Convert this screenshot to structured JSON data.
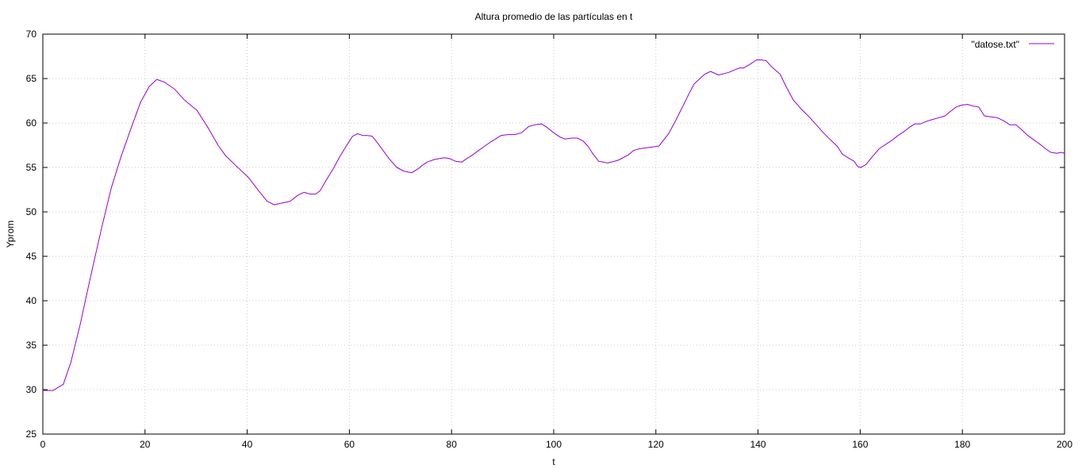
{
  "chart_data": {
    "type": "line",
    "title": "Altura promedio de las partículas en t",
    "xlabel": "t",
    "ylabel": "Yprom",
    "xlim": [
      0,
      200
    ],
    "ylim": [
      25,
      70
    ],
    "xticks": [
      0,
      20,
      40,
      60,
      80,
      100,
      120,
      140,
      160,
      180,
      200
    ],
    "yticks": [
      25,
      30,
      35,
      40,
      45,
      50,
      55,
      60,
      65,
      70
    ],
    "grid": true,
    "legend_position": "top-right",
    "series": [
      {
        "name": "\"datose.txt\"",
        "color": "#9400d3",
        "x": [
          0,
          2,
          4,
          5.5,
          7.3,
          9.3,
          11.5,
          13.4,
          15.3,
          17.2,
          19.1,
          20.8,
          22.3,
          23.8,
          25.8,
          27.7,
          30.2,
          32.4,
          34.3,
          35.8,
          37.8,
          40.2,
          42.2,
          43.9,
          45.3,
          46.9,
          48.4,
          50,
          51.1,
          52.4,
          53.4,
          54.3,
          55.4,
          56.9,
          58.1,
          59.5,
          60.6,
          61.6,
          62.6,
          63.6,
          64.5,
          65.6,
          66.6,
          67.9,
          69.3,
          70.6,
          72.2,
          73.6,
          74.2,
          75.2,
          76.7,
          78.6,
          79.6,
          80.8,
          82,
          83,
          84.1,
          85.3,
          86.5,
          87.5,
          88.6,
          89.7,
          91,
          92.4,
          93.7,
          95.1,
          96.3,
          97.6,
          98.7,
          100,
          101.3,
          102.2,
          103.5,
          104.6,
          105.7,
          106.7,
          107.6,
          108.8,
          110.6,
          112.6,
          114.6,
          115.6,
          116.8,
          118,
          119.3,
          120.6,
          122.5,
          123.9,
          125.2,
          126.4,
          127.5,
          128.8,
          129.6,
          130.7,
          132.3,
          134.3,
          135.5,
          136.4,
          137.2,
          138.4,
          139.7,
          140.6,
          141.6,
          142.7,
          144.3,
          145.5,
          146.9,
          148.4,
          150,
          151.4,
          152.8,
          154.2,
          155.5,
          156.5,
          157.6,
          158.8,
          159.5,
          160.1,
          161.1,
          162.2,
          163.7,
          165,
          166.3,
          167.4,
          168.5,
          169.6,
          170.7,
          171.8,
          173,
          174.2,
          175.4,
          176.6,
          177.4,
          178.8,
          179.8,
          181,
          182.1,
          183.2,
          184.3,
          185.6,
          186.8,
          187.9,
          189.3,
          190.5,
          191.7,
          192.8,
          194,
          195.2,
          196.3,
          197.3,
          198.5,
          199.4,
          200
        ],
        "values": [
          29.9,
          29.9,
          30.6,
          33.1,
          37.3,
          42.6,
          48.2,
          52.7,
          56.2,
          59.3,
          62.3,
          64.1,
          64.9,
          64.6,
          63.8,
          62.6,
          61.4,
          59.4,
          57.5,
          56.3,
          55.2,
          53.9,
          52.4,
          51.2,
          50.8,
          51,
          51.2,
          51.9,
          52.2,
          52,
          52,
          52.4,
          53.5,
          54.9,
          56.2,
          57.5,
          58.5,
          58.8,
          58.6,
          58.6,
          58.5,
          57.7,
          56.9,
          55.9,
          55,
          54.6,
          54.4,
          54.9,
          55.2,
          55.6,
          55.9,
          56.1,
          56,
          55.7,
          55.6,
          56,
          56.4,
          56.9,
          57.4,
          57.8,
          58.2,
          58.6,
          58.7,
          58.7,
          58.9,
          59.6,
          59.8,
          59.9,
          59.5,
          58.9,
          58.4,
          58.2,
          58.3,
          58.3,
          58,
          57.4,
          56.6,
          55.7,
          55.5,
          55.8,
          56.4,
          56.9,
          57.1,
          57.2,
          57.3,
          57.4,
          58.8,
          60.3,
          61.8,
          63.2,
          64.4,
          65.1,
          65.5,
          65.8,
          65.4,
          65.7,
          66,
          66.2,
          66.2,
          66.6,
          67.1,
          67.1,
          67,
          66.3,
          65.5,
          64.1,
          62.6,
          61.6,
          60.7,
          59.8,
          58.9,
          58.1,
          57.4,
          56.5,
          56.1,
          55.7,
          55.1,
          55,
          55.3,
          56.1,
          57.1,
          57.6,
          58.1,
          58.6,
          59,
          59.5,
          59.9,
          59.9,
          60.2,
          60.4,
          60.6,
          60.8,
          61.2,
          61.8,
          62,
          62.1,
          61.9,
          61.8,
          60.8,
          60.7,
          60.6,
          60.3,
          59.8,
          59.8,
          59.2,
          58.6,
          58.1,
          57.6,
          57.1,
          56.7,
          56.6,
          56.7,
          56.6
        ]
      }
    ]
  }
}
